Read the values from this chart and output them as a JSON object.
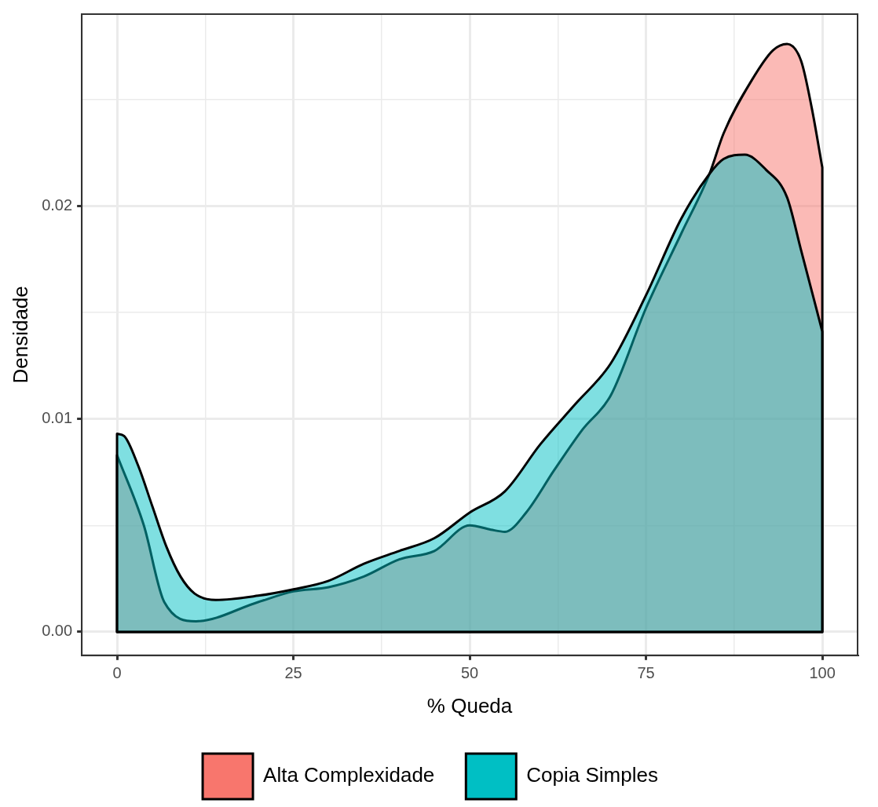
{
  "chart_data": {
    "type": "area",
    "xlabel": "% Queda",
    "ylabel": "Densidade",
    "xlim": [
      -5,
      105
    ],
    "ylim": [
      -0.0011,
      0.029
    ],
    "xticks": [
      0,
      {
        "value": 12.5,
        "label": null
      },
      25,
      {
        "value": 37.5,
        "label": null
      },
      50,
      {
        "value": 62.5,
        "label": null
      },
      75,
      {
        "value": 87.5,
        "label": null
      },
      100
    ],
    "yticks": [
      "0.00",
      {
        "value": 0.005,
        "label": null
      },
      {
        "value": 0.01,
        "label": "0.01"
      },
      {
        "value": 0.015,
        "label": null
      },
      {
        "value": 0.02,
        "label": "0.02"
      },
      {
        "value": 0.025,
        "label": null
      }
    ],
    "grid": true,
    "legend": "bottom",
    "line_style": "solid",
    "marker": "none",
    "series": [
      {
        "name": "Alta Complexidade",
        "color": "#f8766d",
        "x": [
          0,
          3.8,
          6.7,
          11.2,
          20,
          25,
          30,
          35,
          40,
          45,
          50,
          53,
          55,
          58,
          62,
          66,
          70,
          75,
          80,
          84,
          86,
          90,
          93,
          95,
          97,
          98.5,
          100
        ],
        "values": [
          0.0083,
          0.005,
          0.0014,
          0.0005,
          0.0014,
          0.0019,
          0.0021,
          0.0026,
          0.0034,
          0.0038,
          0.005,
          0.0048,
          0.0047,
          0.0056,
          0.0076,
          0.0095,
          0.0111,
          0.0152,
          0.0187,
          0.0215,
          0.0234,
          0.0259,
          0.0273,
          0.0276,
          0.0268,
          0.0246,
          0.0218
        ]
      },
      {
        "name": "Copia Simples",
        "color": "#00bfc4",
        "x": [
          0,
          1,
          3,
          5,
          7,
          9,
          11,
          14,
          20,
          25,
          30,
          35,
          40,
          45,
          50,
          55,
          60,
          65,
          70,
          75,
          80,
          84,
          86,
          89,
          92,
          95,
          97,
          100
        ],
        "values": [
          0.0093,
          0.0092,
          0.0078,
          0.0059,
          0.004,
          0.0026,
          0.0018,
          0.0015,
          0.0017,
          0.002,
          0.0024,
          0.0032,
          0.0038,
          0.0044,
          0.0056,
          0.0066,
          0.0088,
          0.0107,
          0.0126,
          0.0158,
          0.0194,
          0.0215,
          0.0222,
          0.0224,
          0.0217,
          0.0204,
          0.0179,
          0.0141
        ]
      }
    ]
  }
}
